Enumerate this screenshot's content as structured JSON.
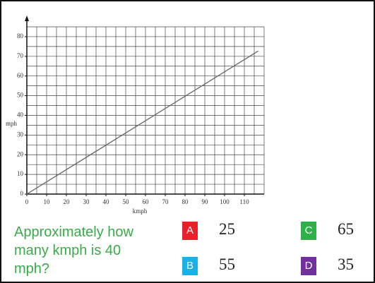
{
  "chart_data": {
    "type": "line",
    "x": [
      0,
      117
    ],
    "values": [
      0,
      72.7
    ],
    "color": "#666666",
    "xlabel": "kmph",
    "ylabel": "mph",
    "xlim": [
      0,
      120
    ],
    "ylim": [
      0,
      85
    ],
    "xticks": [
      0,
      10,
      20,
      30,
      40,
      50,
      60,
      70,
      80,
      90,
      100,
      110
    ],
    "yticks": [
      0,
      10,
      20,
      30,
      40,
      50,
      60,
      70,
      80
    ],
    "xgrid": [
      0,
      5,
      10,
      15,
      20,
      25,
      30,
      35,
      40,
      45,
      50,
      55,
      60,
      65,
      70,
      75,
      80,
      85,
      90,
      95,
      100,
      105,
      110,
      115,
      120
    ],
    "ygrid": [
      0,
      5,
      10,
      15,
      20,
      25,
      30,
      35,
      40,
      45,
      50,
      55,
      60,
      65,
      70,
      75,
      80,
      85
    ],
    "grid": true
  },
  "question": "Approximately how many kmph is 40 mph?",
  "options": [
    {
      "letter": "A",
      "answer": "25",
      "color": "#e8202a"
    },
    {
      "letter": "C",
      "answer": "65",
      "color": "#2db24a"
    },
    {
      "letter": "B",
      "answer": "55",
      "color": "#1ab0e8"
    },
    {
      "letter": "D",
      "answer": "35",
      "color": "#7030a0"
    }
  ]
}
